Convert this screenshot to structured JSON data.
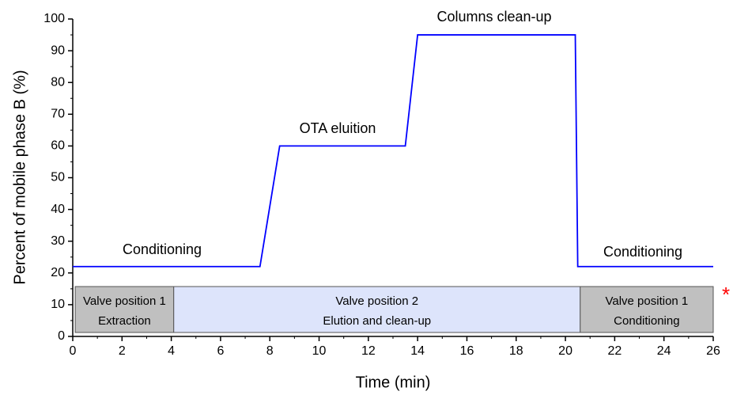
{
  "chart_data": {
    "type": "line",
    "xlabel": "Time (min)",
    "ylabel": "Percent of mobile phase B (%)",
    "x": [
      0,
      7.6,
      8.4,
      13.5,
      14.0,
      20.4,
      20.5,
      26
    ],
    "series": [
      {
        "name": "Mobile phase B",
        "color": "#0000ff",
        "values": [
          22,
          22,
          60,
          60,
          95,
          95,
          22,
          22
        ]
      }
    ],
    "xlim": [
      0,
      26
    ],
    "xticks": [
      0,
      2,
      4,
      6,
      8,
      10,
      12,
      14,
      16,
      18,
      20,
      22,
      24,
      26
    ],
    "ylim": [
      0,
      100
    ],
    "yticks": [
      0,
      10,
      20,
      30,
      40,
      50,
      60,
      70,
      80,
      90,
      100
    ],
    "annotations": [
      "Conditioning",
      "OTA eluition",
      "Columns clean-up",
      "Conditioning"
    ],
    "regions": [
      {
        "lines": [
          "Valve position 1",
          "Extraction"
        ],
        "x": [
          0.1,
          4.1
        ],
        "color": "#c0c0c0"
      },
      {
        "lines": [
          "Valve position 2",
          "Elution and clean-up"
        ],
        "x": [
          4.1,
          20.6
        ],
        "color": "#dde4fb"
      },
      {
        "lines": [
          "Valve position 1",
          "Conditioning"
        ],
        "x": [
          20.6,
          26
        ],
        "color": "#c0c0c0"
      }
    ],
    "marker": "*",
    "marker_color": "#ff0000"
  }
}
